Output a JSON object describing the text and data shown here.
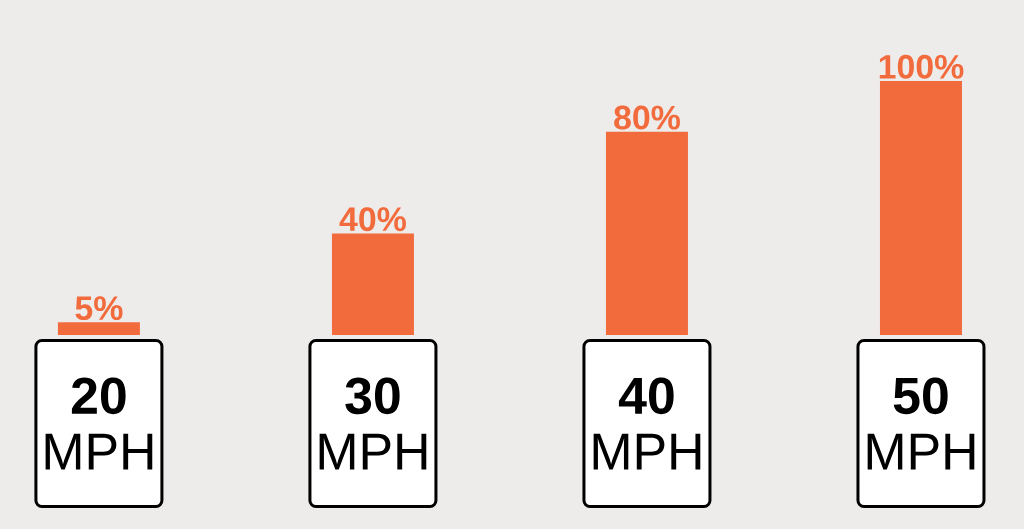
{
  "chart_data": {
    "type": "bar",
    "categories": [
      "**20** MPH",
      "**30** MPH",
      "**40** MPH",
      "**50** MPH"
    ],
    "values": [
      5,
      40,
      80,
      100
    ],
    "value_labels": [
      "5%",
      "40%",
      "80%",
      "100%"
    ],
    "color": "#f26b3d",
    "ylim": [
      0,
      100
    ]
  }
}
